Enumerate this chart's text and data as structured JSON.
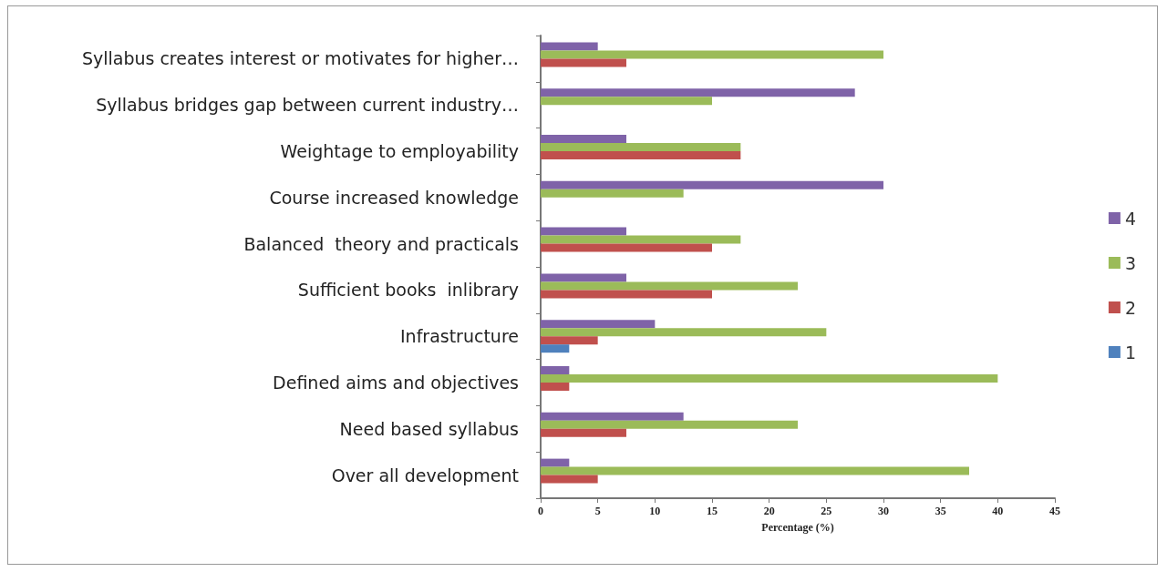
{
  "chart_data": {
    "type": "bar",
    "orientation": "horizontal",
    "xlabel": "Percentage (%)",
    "categories": [
      "Syllabus creates interest or motivates for higher…",
      "Syllabus bridges gap between current industry…",
      "Weightage to employability",
      "Course increased knowledge",
      "Balanced  theory and practicals",
      "Sufficient books  inlibrary",
      "Infrastructure",
      "Defined aims and objectives",
      "Need based syllabus",
      "Over all development"
    ],
    "series": [
      {
        "name": "4",
        "color": "#7f63a8",
        "values": [
          5,
          27.5,
          7.5,
          30,
          7.5,
          7.5,
          10,
          2.5,
          12.5,
          2.5
        ]
      },
      {
        "name": "3",
        "color": "#9bbb59",
        "values": [
          30,
          15,
          17.5,
          12.5,
          17.5,
          22.5,
          25,
          40,
          22.5,
          37.5
        ]
      },
      {
        "name": "2",
        "color": "#c0504d",
        "values": [
          7.5,
          0,
          17.5,
          0,
          15,
          15,
          5,
          2.5,
          7.5,
          5
        ]
      },
      {
        "name": "1",
        "color": "#4f81bd",
        "values": [
          0,
          0,
          0,
          0,
          0,
          0,
          2.5,
          0,
          0,
          0
        ]
      }
    ],
    "xlim": [
      0,
      45
    ],
    "xticks": [
      0,
      5,
      10,
      15,
      20,
      25,
      30,
      35,
      40,
      45
    ],
    "grid": false,
    "legend": "right"
  }
}
